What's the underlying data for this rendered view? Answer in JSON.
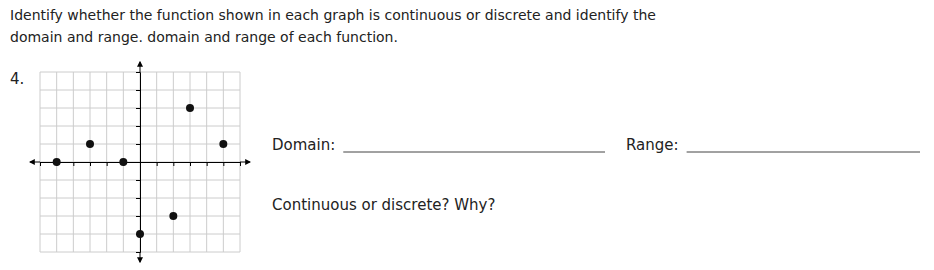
{
  "chart_data": {
    "type": "scatter",
    "title": "Identify whether the function shown in each graph is continuous or discrete and identify the",
    "subtitle": "domain and range. domain and range of each function.",
    "annotations": [
      "4.",
      "Domain:",
      "Range:",
      "Continuous or discrete? Why?"
    ],
    "x": [
      -5,
      -3,
      -1,
      3,
      5,
      2,
      0
    ],
    "values": [
      0,
      1,
      0,
      3,
      1,
      -3,
      -4
    ],
    "color": "#111111",
    "xlim": [
      -6,
      6
    ],
    "ylim": [
      -5,
      5
    ],
    "xticks": [
      -6,
      -5,
      -4,
      -3,
      -2,
      -1,
      0,
      1,
      2,
      3,
      4,
      5,
      6
    ],
    "yticks": [
      -5,
      -4,
      -3,
      -2,
      -1,
      0,
      1,
      2,
      3,
      4,
      5
    ],
    "grid": true,
    "tick_labels": false
  }
}
